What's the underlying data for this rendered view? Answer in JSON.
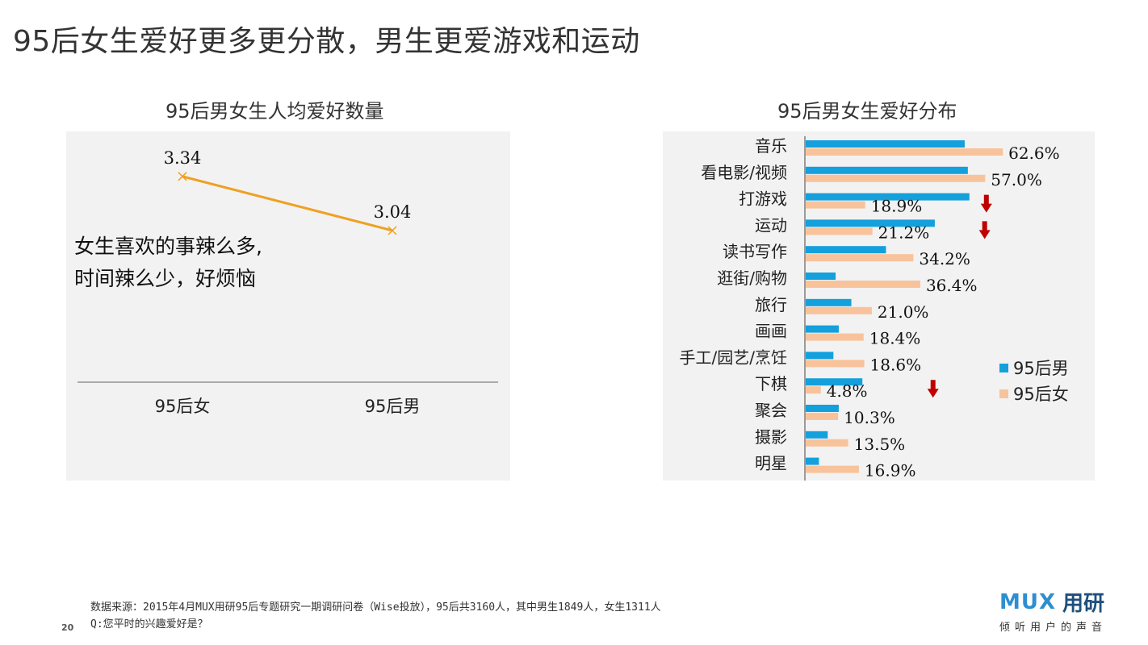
{
  "page": {
    "title": "95后女生爱好更多更分散，男生更爱游戏和运动",
    "page_number": "20"
  },
  "line_chart": {
    "title": "95后男女生人均爱好数量",
    "annotation_lines": [
      "女生喜欢的事辣么多,",
      "时间辣么少，好烦恼"
    ]
  },
  "bar_chart": {
    "title": "95后男女生爱好分布"
  },
  "legend": {
    "items": [
      {
        "label": "95后男",
        "color": "#14a0dc"
      },
      {
        "label": "95后女",
        "color": "#f8c39b"
      }
    ]
  },
  "footer": {
    "source": "数据来源：2015年4月MUX用研95后专题研究一期调研问卷（Wise投放），95后共3160人，其中男生1849人，女生1311人",
    "question": "Q:您平时的兴趣爱好是？"
  },
  "brand": {
    "logo_text": "MUX",
    "name": "用研",
    "tagline": "倾听用户的声音"
  },
  "colors": {
    "male": "#14a0dc",
    "female": "#f8c39b",
    "line": "#f0a020",
    "arrow": "#c00000",
    "panel": "#f2f2f2"
  },
  "chart_data": [
    {
      "type": "line",
      "title": "95后男女生人均爱好数量",
      "categories": [
        "95后女",
        "95后男"
      ],
      "values": [
        3.34,
        3.04
      ],
      "value_labels": [
        "3.34",
        "3.04"
      ],
      "ylim": [
        2.2,
        3.5
      ],
      "grid": false
    },
    {
      "type": "bar",
      "orientation": "horizontal",
      "title": "95后男女生爱好分布",
      "categories": [
        "音乐",
        "看电影/视频",
        "打游戏",
        "运动",
        "读书写作",
        "逛街/购物",
        "旅行",
        "画画",
        "手工/园艺/烹饪",
        "下棋",
        "聚会",
        "摄影",
        "明星"
      ],
      "series": [
        {
          "name": "95后男",
          "values": [
            50.5,
            51.5,
            52.0,
            41.0,
            25.5,
            9.5,
            14.5,
            10.5,
            8.8,
            18.0,
            10.5,
            7.0,
            4.2
          ]
        },
        {
          "name": "95后女",
          "values": [
            62.6,
            57.0,
            18.9,
            21.2,
            34.2,
            36.4,
            21.0,
            18.4,
            18.6,
            4.8,
            10.3,
            13.5,
            16.9
          ],
          "labels": [
            "62.6%",
            "57.0%",
            "18.9%",
            "21.2%",
            "34.2%",
            "36.4%",
            "21.0%",
            "18.4%",
            "18.6%",
            "4.8%",
            "10.3%",
            "13.5%",
            "16.9%"
          ]
        }
      ],
      "xlim": [
        0,
        100
      ],
      "down_arrows": [
        "打游戏",
        "运动",
        "下棋"
      ],
      "legend_position": "right"
    }
  ]
}
